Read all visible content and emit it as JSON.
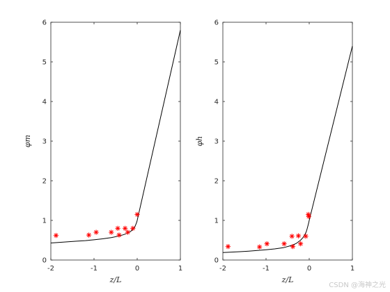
{
  "watermark": "CSDN @海神之光",
  "chart_data": [
    {
      "type": "line",
      "xlabel": "z/L",
      "ylabel": "φm",
      "xlim": [
        -2,
        1
      ],
      "ylim": [
        0,
        6
      ],
      "xticks": [
        "-2",
        "-1",
        "0",
        "1"
      ],
      "yticks": [
        "0",
        "1",
        "2",
        "3",
        "4",
        "5",
        "6"
      ],
      "grid": false,
      "series": [
        {
          "style": "line",
          "color": "#000000",
          "x": [
            -2.0,
            -1.8,
            -1.6,
            -1.4,
            -1.2,
            -1.0,
            -0.8,
            -0.6,
            -0.4,
            -0.3,
            -0.2,
            -0.15,
            -0.1,
            -0.07,
            -0.05,
            -0.03,
            -0.01,
            0.0,
            1.0
          ],
          "y": [
            0.43,
            0.445,
            0.46,
            0.475,
            0.49,
            0.51,
            0.535,
            0.565,
            0.61,
            0.645,
            0.69,
            0.725,
            0.77,
            0.81,
            0.85,
            0.9,
            0.96,
            1.0,
            5.8
          ]
        },
        {
          "style": "marker",
          "marker": "*",
          "color": "#ff0000",
          "x": [
            -1.88,
            -1.12,
            -0.95,
            -0.6,
            -0.45,
            -0.42,
            -0.28,
            -0.22,
            -0.1,
            0.0
          ],
          "y": [
            0.62,
            0.63,
            0.7,
            0.7,
            0.8,
            0.63,
            0.8,
            0.7,
            0.8,
            1.15
          ]
        }
      ]
    },
    {
      "type": "line",
      "xlabel": "z/L",
      "ylabel": "φh",
      "xlim": [
        -2,
        1
      ],
      "ylim": [
        0,
        6
      ],
      "xticks": [
        "-2",
        "-1",
        "0",
        "1"
      ],
      "yticks": [
        "0",
        "1",
        "2",
        "3",
        "4",
        "5",
        "6"
      ],
      "grid": false,
      "series": [
        {
          "style": "line",
          "color": "#000000",
          "x": [
            -2.0,
            -1.8,
            -1.6,
            -1.4,
            -1.2,
            -1.0,
            -0.8,
            -0.6,
            -0.4,
            -0.3,
            -0.2,
            -0.15,
            -0.1,
            -0.07,
            -0.05,
            -0.03,
            -0.01,
            0.0,
            1.0
          ],
          "y": [
            0.19,
            0.2,
            0.21,
            0.225,
            0.24,
            0.26,
            0.28,
            0.31,
            0.37,
            0.42,
            0.5,
            0.56,
            0.64,
            0.71,
            0.78,
            0.86,
            0.95,
            1.0,
            5.4
          ]
        },
        {
          "style": "marker",
          "marker": "*",
          "color": "#ff0000",
          "x": [
            -1.88,
            -1.15,
            -0.98,
            -0.58,
            -0.4,
            -0.38,
            -0.25,
            -0.2,
            -0.08,
            -0.02,
            -0.01
          ],
          "y": [
            0.34,
            0.33,
            0.41,
            0.41,
            0.6,
            0.34,
            0.61,
            0.41,
            0.6,
            1.15,
            1.1
          ]
        }
      ]
    }
  ]
}
